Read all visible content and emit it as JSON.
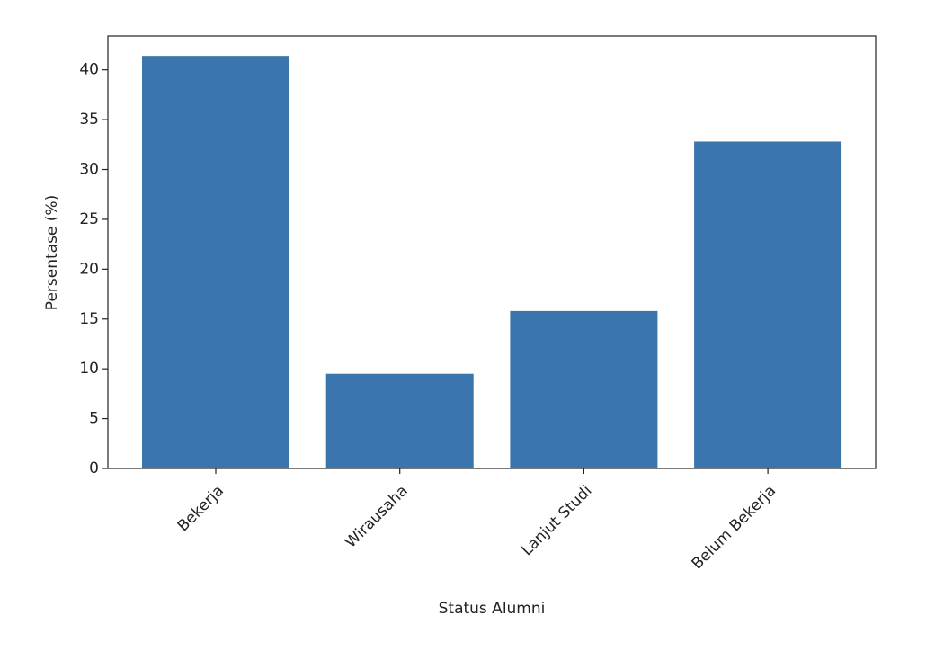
{
  "chart_data": {
    "type": "bar",
    "x_label": "Status Alumni",
    "y_label": "Persentase (%)",
    "categories": [
      "Bekerja",
      "Wirausaha",
      "Lanjut Studi",
      "Belum Bekerja"
    ],
    "values": [
      41.4,
      9.5,
      15.8,
      32.8
    ],
    "color": "#3a75ae",
    "ylim": [
      0,
      43.4
    ],
    "yticks": [
      0,
      5,
      10,
      15,
      20,
      25,
      30,
      35,
      40
    ],
    "grid": false
  }
}
